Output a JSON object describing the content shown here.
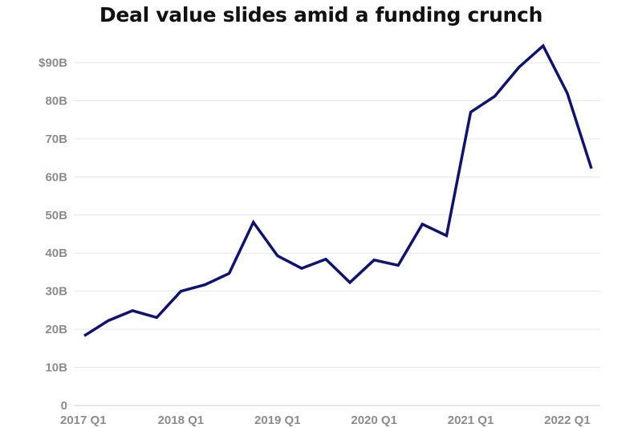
{
  "chart_data": {
    "type": "line",
    "title": "Deal value slides amid a funding crunch",
    "xlabel": "",
    "ylabel": "",
    "x": [
      "2017 Q1",
      "2017 Q2",
      "2017 Q3",
      "2017 Q4",
      "2018 Q1",
      "2018 Q2",
      "2018 Q3",
      "2018 Q4",
      "2019 Q1",
      "2019 Q2",
      "2019 Q3",
      "2019 Q4",
      "2020 Q1",
      "2020 Q2",
      "2020 Q3",
      "2020 Q4",
      "2021 Q1",
      "2021 Q2",
      "2021 Q3",
      "2021 Q4",
      "2022 Q1",
      "2022 Q2"
    ],
    "x_tick_labels": [
      "2017 Q1",
      "2018 Q1",
      "2019 Q1",
      "2020 Q1",
      "2021 Q1",
      "2022 Q1"
    ],
    "series": [
      {
        "values": [
          18.3,
          22.3,
          24.9,
          23.1,
          30.0,
          31.7,
          34.7,
          48.1,
          39.3,
          36.0,
          38.4,
          32.3,
          38.2,
          36.8,
          47.6,
          44.6,
          77.0,
          81.2,
          88.8,
          94.4,
          82.0,
          62.2
        ],
        "color": "#0f1370"
      }
    ],
    "y_ticks": [
      0,
      10,
      20,
      30,
      40,
      50,
      60,
      70,
      80,
      90
    ],
    "y_tick_labels": [
      "0",
      "10B",
      "20B",
      "30B",
      "40B",
      "50B",
      "60B",
      "70B",
      "80B",
      "$90B"
    ],
    "ylim": [
      0,
      90
    ],
    "grid": true,
    "legend": "none"
  }
}
